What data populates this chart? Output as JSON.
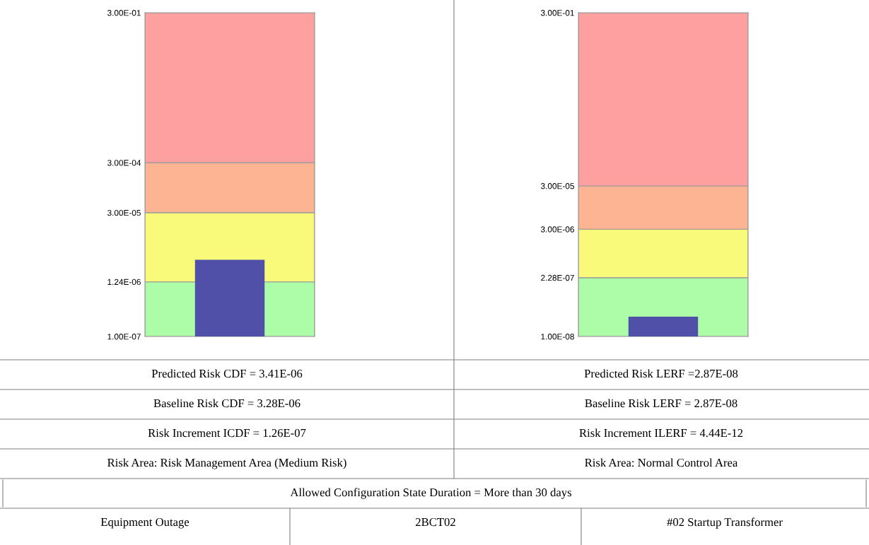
{
  "chart_data": [
    {
      "type": "bar",
      "categories": [
        null
      ],
      "values": [
        3.41e-06
      ],
      "color": "#5050a8",
      "log": true,
      "grid": false,
      "ylim": [
        1e-07,
        0.3
      ],
      "yticks": [
        {
          "value": 1e-07,
          "label": "1.00E-07"
        },
        {
          "value": 1.24e-06,
          "label": "1.24E-06"
        },
        {
          "value": 3e-05,
          "label": "3.00E-05"
        },
        {
          "value": 0.0003,
          "label": "3.00E-04"
        },
        {
          "value": 0.3,
          "label": "3.00E-01"
        }
      ],
      "bands": [
        {
          "axis": "y",
          "from": 1e-07,
          "to": 1.24e-06,
          "color": "#adfca8"
        },
        {
          "axis": "y",
          "from": 1.24e-06,
          "to": 3e-05,
          "color": "#fafa7a"
        },
        {
          "axis": "y",
          "from": 3e-05,
          "to": 0.0003,
          "color": "#fcb492"
        },
        {
          "axis": "y",
          "from": 0.0003,
          "to": 0.3,
          "color": "#ffa0a0"
        }
      ],
      "annotations": [
        "Predicted Risk CDF = 3.41E-06",
        "Baseline Risk CDF = 3.28E-06",
        "Risk Increment ICDF = 1.26E-07",
        "Risk Area: Risk Management Area (Medium Risk)"
      ]
    },
    {
      "type": "bar",
      "categories": [
        null
      ],
      "values": [
        2.87e-08
      ],
      "color": "#5050a8",
      "log": true,
      "grid": false,
      "ylim": [
        1e-08,
        0.3
      ],
      "yticks": [
        {
          "value": 1e-08,
          "label": "1.00E-08"
        },
        {
          "value": 2.28e-07,
          "label": "2.28E-07"
        },
        {
          "value": 3e-06,
          "label": "3.00E-06"
        },
        {
          "value": 3e-05,
          "label": "3.00E-05"
        },
        {
          "value": 0.3,
          "label": "3.00E-01"
        }
      ],
      "bands": [
        {
          "axis": "y",
          "from": 1e-08,
          "to": 2.28e-07,
          "color": "#adfca8"
        },
        {
          "axis": "y",
          "from": 2.28e-07,
          "to": 3e-06,
          "color": "#fafa7a"
        },
        {
          "axis": "y",
          "from": 3e-06,
          "to": 3e-05,
          "color": "#fcb492"
        },
        {
          "axis": "y",
          "from": 3e-05,
          "to": 0.3,
          "color": "#ffa0a0"
        }
      ],
      "annotations": [
        "Predicted Risk LERF =2.87E-08",
        "Baseline Risk LERF = 2.87E-08",
        "Risk Increment ILERF = 4.44E-12",
        "Risk Area: Normal Control Area",
        "Allowed Configuration State Duration = More than 30 days",
        "Equipment Outage",
        "2BCT02",
        "#02 Startup Transformer"
      ]
    }
  ]
}
